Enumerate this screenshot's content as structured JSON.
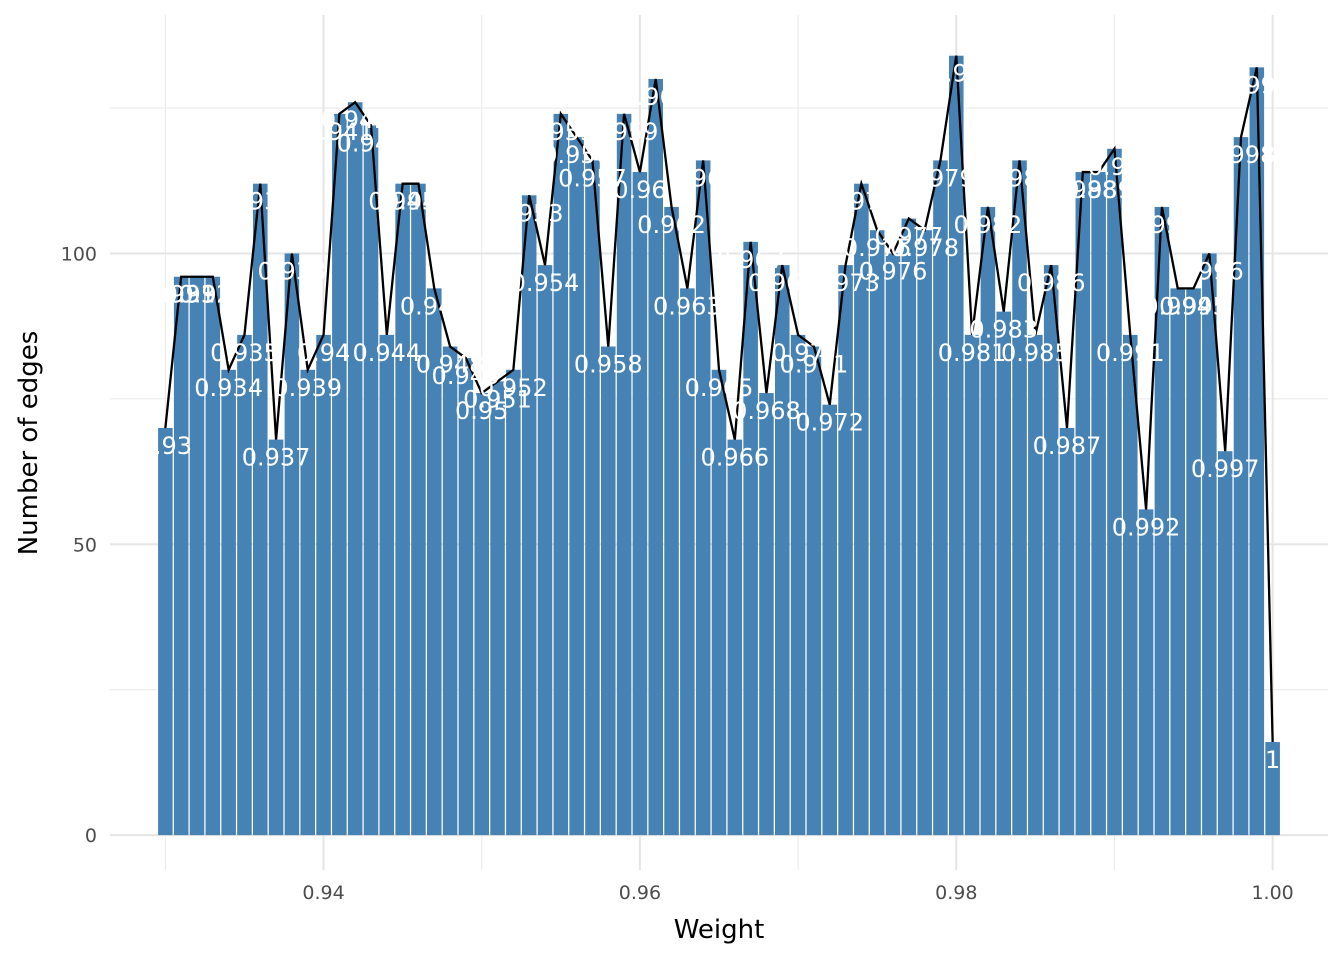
{
  "chart_data": {
    "type": "bar",
    "title": "",
    "xlabel": "Weight",
    "ylabel": "Number of edges",
    "xlim": [
      0.9265,
      1.0035
    ],
    "ylim": [
      -6,
      141
    ],
    "x_ticks": [
      "0.94",
      "0.96",
      "0.98",
      "1.00"
    ],
    "x_tick_values": [
      0.94,
      0.96,
      0.98,
      1.0
    ],
    "y_ticks": [
      "0",
      "50",
      "100"
    ],
    "y_tick_values": [
      0,
      50,
      100
    ],
    "grid": true,
    "bar_color": "#4682B4",
    "line_color": "#000000",
    "label_color": "#FFFFFF",
    "x": [
      0.93,
      0.931,
      0.932,
      0.933,
      0.934,
      0.935,
      0.936,
      0.937,
      0.938,
      0.939,
      0.94,
      0.941,
      0.942,
      0.943,
      0.944,
      0.945,
      0.946,
      0.947,
      0.948,
      0.949,
      0.95,
      0.951,
      0.952,
      0.953,
      0.954,
      0.955,
      0.956,
      0.957,
      0.958,
      0.959,
      0.96,
      0.961,
      0.962,
      0.963,
      0.964,
      0.965,
      0.966,
      0.967,
      0.968,
      0.969,
      0.97,
      0.971,
      0.972,
      0.973,
      0.974,
      0.975,
      0.976,
      0.977,
      0.978,
      0.979,
      0.98,
      0.981,
      0.982,
      0.983,
      0.984,
      0.985,
      0.986,
      0.987,
      0.988,
      0.989,
      0.99,
      0.991,
      0.992,
      0.993,
      0.994,
      0.995,
      0.996,
      0.997,
      0.998,
      0.999,
      1.0
    ],
    "values": [
      70,
      96,
      96,
      96,
      80,
      86,
      112,
      68,
      100,
      80,
      86,
      124,
      126,
      122,
      86,
      112,
      112,
      94,
      84,
      82,
      76,
      78,
      80,
      110,
      98,
      124,
      120,
      116,
      84,
      124,
      114,
      130,
      108,
      94,
      116,
      80,
      68,
      102,
      76,
      98,
      86,
      84,
      74,
      98,
      112,
      104,
      100,
      106,
      104,
      116,
      134,
      86,
      108,
      90,
      116,
      86,
      98,
      70,
      114,
      114,
      118,
      86,
      56,
      108,
      94,
      94,
      100,
      66,
      120,
      132,
      16
    ],
    "labels": [
      "0.93",
      "0.931",
      "0.932",
      "0.933",
      "0.934",
      "0.935",
      "0.936",
      "0.937",
      "0.938",
      "0.939",
      "0.94",
      "0.941",
      "0.942",
      "0.943",
      "0.944",
      "0.945",
      "0.946",
      "0.947",
      "0.948",
      "0.949",
      "0.95",
      "0.951",
      "0.952",
      "0.953",
      "0.954",
      "0.955",
      "0.956",
      "0.957",
      "0.958",
      "0.959",
      "0.96",
      "0.961",
      "0.962",
      "0.963",
      "0.964",
      "0.965",
      "0.966",
      "0.967",
      "0.968",
      "0.969",
      "0.97",
      "0.971",
      "0.972",
      "0.973",
      "0.974",
      "0.975",
      "0.976",
      "0.977",
      "0.978",
      "0.979",
      "0.98",
      "0.981",
      "0.982",
      "0.983",
      "0.984",
      "0.985",
      "0.986",
      "0.987",
      "0.988",
      "0.989",
      "0.99",
      "0.991",
      "0.992",
      "0.993",
      "0.994",
      "0.995",
      "0.996",
      "0.997",
      "0.998",
      "0.999",
      "1"
    ]
  }
}
